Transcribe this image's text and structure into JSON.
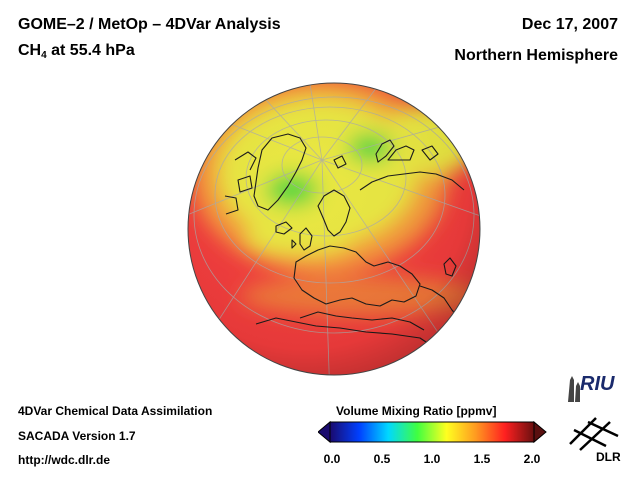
{
  "header": {
    "title": "GOME–2 / MetOp – 4DVar Analysis",
    "species_prefix": "CH",
    "species_subscript": "4",
    "level": " at 55.4 hPa",
    "date": "Dec 17, 2007",
    "region": "Northern Hemisphere"
  },
  "footer": {
    "line1": "4DVar Chemical Data Assimilation",
    "line2": "SACADA Version 1.7",
    "line3": "http://wdc.dlr.de"
  },
  "colorbar": {
    "title": "Volume Mixing Ratio [ppmv]",
    "ticks": [
      "0.0",
      "0.5",
      "1.0",
      "1.5",
      "2.0"
    ],
    "colors": [
      "#1a0a6e",
      "#0040ff",
      "#00d8ff",
      "#40ff40",
      "#ffff20",
      "#ff9a20",
      "#ff2020",
      "#6a1010"
    ]
  },
  "logos": {
    "riu": "RIU",
    "dlr": "DLR"
  },
  "colors": {
    "low_green": "#4cd640",
    "mid_yellow": "#e8e640",
    "high_red": "#f23c3c"
  }
}
